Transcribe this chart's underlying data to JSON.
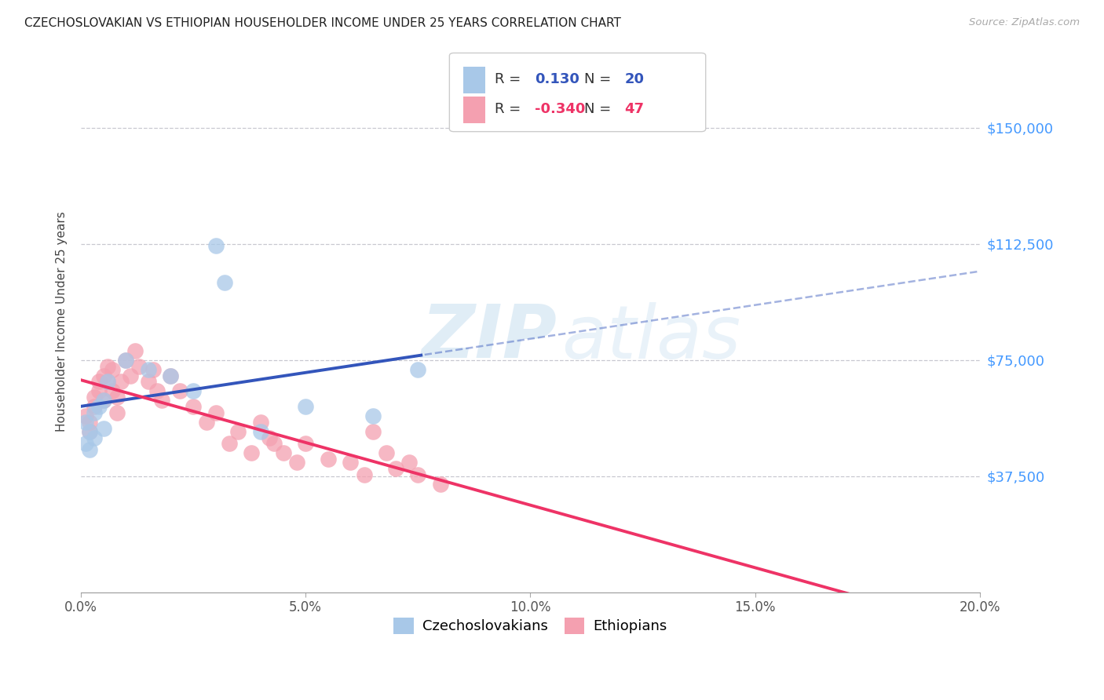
{
  "title": "CZECHOSLOVAKIAN VS ETHIOPIAN HOUSEHOLDER INCOME UNDER 25 YEARS CORRELATION CHART",
  "source": "Source: ZipAtlas.com",
  "ylabel": "Householder Income Under 25 years",
  "xlabel_ticks": [
    "0.0%",
    "5.0%",
    "10.0%",
    "15.0%",
    "20.0%"
  ],
  "xlabel_vals": [
    0.0,
    0.05,
    0.1,
    0.15,
    0.2
  ],
  "ylim": [
    0,
    175000
  ],
  "xlim": [
    0.0,
    0.2
  ],
  "ytick_labels": [
    "$37,500",
    "$75,000",
    "$112,500",
    "$150,000"
  ],
  "ytick_vals": [
    37500,
    75000,
    112500,
    150000
  ],
  "bg_color": "#ffffff",
  "grid_color": "#c8c8d0",
  "watermark": "ZIPatlas",
  "legend_r_czech": "0.130",
  "legend_n_czech": "20",
  "legend_r_ethiop": "-0.340",
  "legend_n_ethiop": "47",
  "czech_color": "#a8c8e8",
  "ethiop_color": "#f4a0b0",
  "czech_line_color": "#3355bb",
  "ethiop_line_color": "#ee3366",
  "czech_label": "Czechoslovakians",
  "ethiop_label": "Ethiopians",
  "czech_x": [
    0.001,
    0.001,
    0.002,
    0.002,
    0.003,
    0.003,
    0.004,
    0.005,
    0.005,
    0.006,
    0.01,
    0.015,
    0.02,
    0.025,
    0.03,
    0.032,
    0.04,
    0.05,
    0.065,
    0.075
  ],
  "czech_y": [
    55000,
    48000,
    52000,
    46000,
    58000,
    50000,
    60000,
    53000,
    62000,
    68000,
    75000,
    72000,
    70000,
    65000,
    112000,
    100000,
    52000,
    60000,
    57000,
    72000
  ],
  "ethiop_x": [
    0.001,
    0.002,
    0.002,
    0.003,
    0.003,
    0.004,
    0.004,
    0.005,
    0.005,
    0.006,
    0.006,
    0.007,
    0.007,
    0.008,
    0.008,
    0.009,
    0.01,
    0.011,
    0.012,
    0.013,
    0.015,
    0.016,
    0.017,
    0.018,
    0.02,
    0.022,
    0.025,
    0.028,
    0.03,
    0.033,
    0.035,
    0.038,
    0.04,
    0.042,
    0.043,
    0.045,
    0.048,
    0.05,
    0.055,
    0.06,
    0.063,
    0.065,
    0.068,
    0.07,
    0.073,
    0.075,
    0.08
  ],
  "ethiop_y": [
    57000,
    55000,
    52000,
    63000,
    60000,
    68000,
    65000,
    70000,
    62000,
    73000,
    68000,
    65000,
    72000,
    63000,
    58000,
    68000,
    75000,
    70000,
    78000,
    73000,
    68000,
    72000,
    65000,
    62000,
    70000,
    65000,
    60000,
    55000,
    58000,
    48000,
    52000,
    45000,
    55000,
    50000,
    48000,
    45000,
    42000,
    48000,
    43000,
    42000,
    38000,
    52000,
    45000,
    40000,
    42000,
    38000,
    35000
  ]
}
